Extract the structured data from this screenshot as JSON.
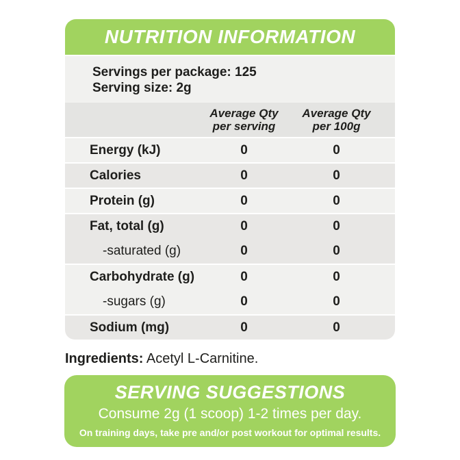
{
  "header": {
    "title": "NUTRITION INFORMATION"
  },
  "serving_info": {
    "servings_per_package": "Servings per package: 125",
    "serving_size": "Serving size: 2g"
  },
  "table": {
    "columns": [
      {
        "line1": "Average Qty",
        "line2": "per serving"
      },
      {
        "line1": "Average Qty",
        "line2": "per 100g"
      }
    ],
    "rows": [
      {
        "label": "Energy (kJ)",
        "per_serving": "0",
        "per_100g": "0"
      },
      {
        "label": "Calories",
        "per_serving": "0",
        "per_100g": "0"
      },
      {
        "label": "Protein (g)",
        "per_serving": "0",
        "per_100g": "0"
      },
      {
        "label": "Fat, total (g)",
        "per_serving": "0",
        "per_100g": "0"
      },
      {
        "label": "-saturated (g)",
        "per_serving": "0",
        "per_100g": "0"
      },
      {
        "label": "Carbohydrate (g)",
        "per_serving": "0",
        "per_100g": "0"
      },
      {
        "label": "-sugars (g)",
        "per_serving": "0",
        "per_100g": "0"
      },
      {
        "label": "Sodium (mg)",
        "per_serving": "0",
        "per_100g": "0"
      }
    ]
  },
  "ingredients": {
    "label": "Ingredients:",
    "value": "Acetyl L-Carnitine."
  },
  "serving_suggestions": {
    "title": "SERVING SUGGESTIONS",
    "instruction": "Consume 2g (1 scoop) 1-2 times per day.",
    "note": "On training days, take pre and/or post workout for optimal results."
  },
  "colors": {
    "green": "#a1d35f",
    "row_light": "#f1f1ef",
    "row_dark": "#e8e7e5",
    "header_band": "#e4e4e2",
    "text_dark": "#1e1e1c"
  }
}
